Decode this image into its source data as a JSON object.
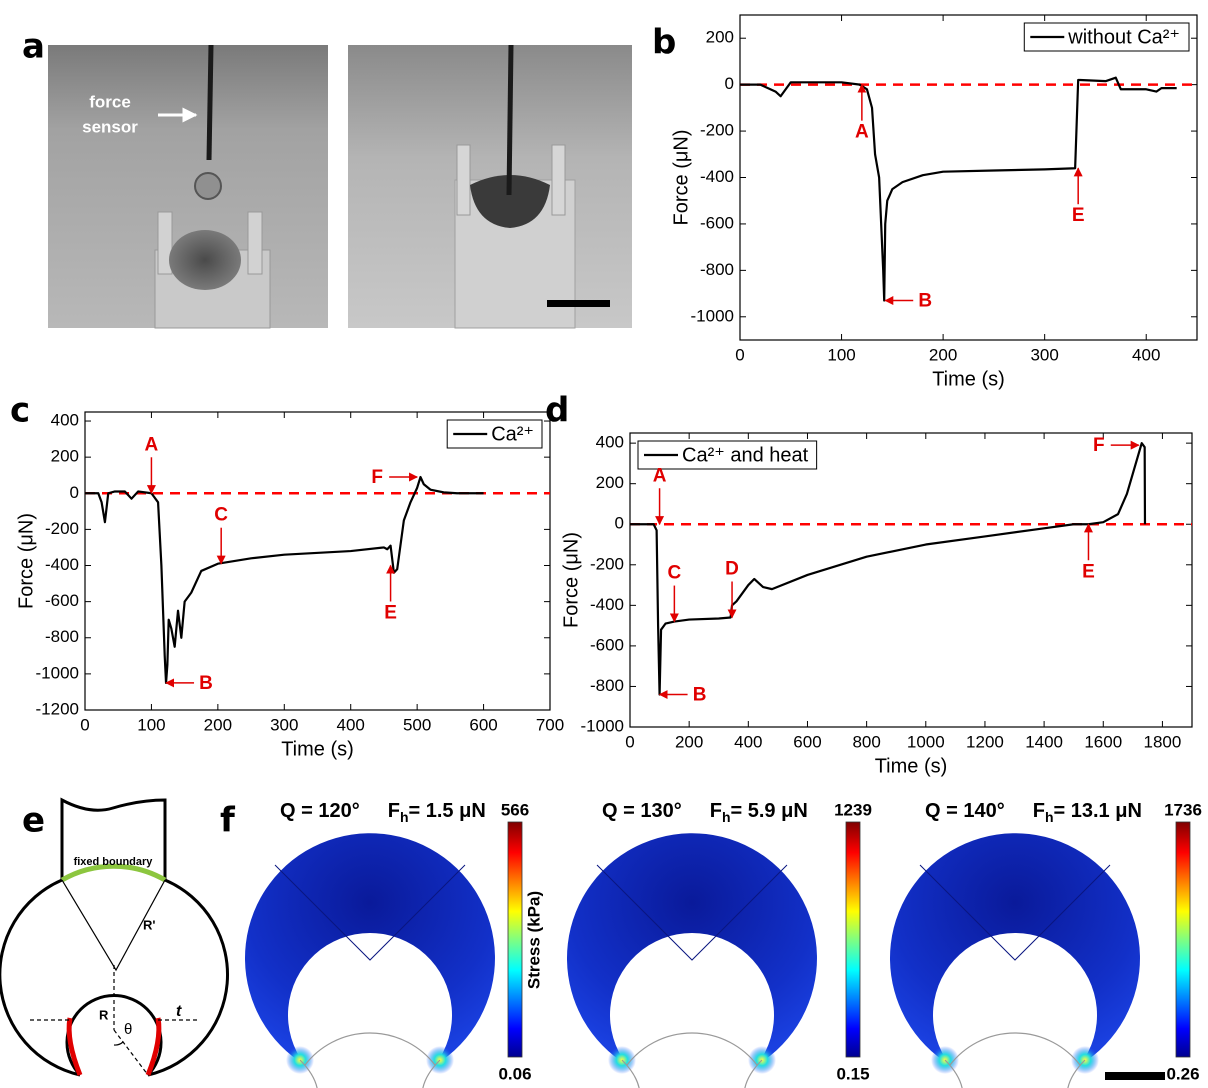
{
  "panel_labels": [
    "a",
    "b",
    "c",
    "d",
    "e",
    "f"
  ],
  "panel_a": {
    "annotation": [
      "force",
      "sensor"
    ]
  },
  "chart_data": [
    {
      "type": "line",
      "xlabel": "Time (s)",
      "ylabel": "Force (μN)",
      "xlim": [
        0,
        450
      ],
      "ylim": [
        -1100,
        300
      ],
      "xticks": [
        0,
        100,
        200,
        300,
        400
      ],
      "yticks": [
        -1000,
        -800,
        -600,
        -400,
        -200,
        0,
        200
      ],
      "legend": "upper right",
      "reference_line": {
        "y": 0,
        "color": "#ff0000"
      },
      "series": [
        {
          "name": "without Ca²⁺",
          "color": "#000000",
          "x": [
            0,
            20,
            35,
            40,
            45,
            50,
            100,
            118,
            125,
            130,
            133,
            137,
            140,
            141,
            142,
            143,
            145,
            150,
            160,
            180,
            200,
            250,
            300,
            330,
            333,
            335,
            360,
            370,
            375,
            400,
            410,
            415,
            430
          ],
          "values": [
            0,
            0,
            -30,
            -50,
            -20,
            10,
            10,
            0,
            -20,
            -100,
            -300,
            -400,
            -700,
            -800,
            -930,
            -600,
            -500,
            -450,
            -420,
            -390,
            -375,
            -370,
            -365,
            -360,
            20,
            20,
            15,
            30,
            -20,
            -20,
            -30,
            -15,
            -15
          ]
        }
      ],
      "annotations": [
        {
          "text": "A",
          "x": 120,
          "y": 0,
          "direction": "up"
        },
        {
          "text": "B",
          "x": 143,
          "y": -930,
          "direction": "left"
        },
        {
          "text": "E",
          "x": 333,
          "y": -360,
          "direction": "up"
        }
      ]
    },
    {
      "type": "line",
      "xlabel": "Time (s)",
      "ylabel": "Force (μN)",
      "xlim": [
        0,
        700
      ],
      "ylim": [
        -1200,
        450
      ],
      "xticks": [
        0,
        100,
        200,
        300,
        400,
        500,
        600,
        700
      ],
      "yticks": [
        -1200,
        -1000,
        -800,
        -600,
        -400,
        -200,
        0,
        200,
        400
      ],
      "legend": "upper right",
      "reference_line": {
        "y": 0,
        "color": "#ff0000"
      },
      "series": [
        {
          "name": "Ca²⁺",
          "color": "#000000",
          "x": [
            0,
            20,
            25,
            30,
            35,
            45,
            60,
            70,
            80,
            100,
            110,
            115,
            120,
            122,
            124,
            126,
            130,
            135,
            140,
            145,
            150,
            160,
            175,
            200,
            250,
            300,
            400,
            450,
            455,
            460,
            465,
            470,
            480,
            490,
            500,
            505,
            510,
            520,
            540,
            560,
            600
          ],
          "values": [
            0,
            0,
            -50,
            -160,
            0,
            10,
            10,
            -30,
            10,
            0,
            -50,
            -400,
            -900,
            -1050,
            -950,
            -700,
            -750,
            -850,
            -650,
            -800,
            -600,
            -550,
            -430,
            -390,
            -360,
            -340,
            -320,
            -300,
            -310,
            -290,
            -440,
            -420,
            -150,
            -50,
            30,
            90,
            50,
            20,
            5,
            0,
            0
          ]
        }
      ],
      "annotations": [
        {
          "text": "A",
          "x": 100,
          "y": 0,
          "direction": "down"
        },
        {
          "text": "B",
          "x": 122,
          "y": -1050,
          "direction": "left"
        },
        {
          "text": "C",
          "x": 205,
          "y": -390,
          "direction": "down"
        },
        {
          "text": "E",
          "x": 460,
          "y": -400,
          "direction": "up"
        },
        {
          "text": "F",
          "x": 500,
          "y": 90,
          "direction": "right"
        }
      ]
    },
    {
      "type": "line",
      "xlabel": "Time (s)",
      "ylabel": "Force (μN)",
      "xlim": [
        0,
        1900
      ],
      "ylim": [
        -1000,
        450
      ],
      "xticks": [
        0,
        200,
        400,
        600,
        800,
        1000,
        1200,
        1400,
        1600,
        1800
      ],
      "yticks": [
        -1000,
        -800,
        -600,
        -400,
        -200,
        0,
        200,
        400
      ],
      "legend": "upper left",
      "reference_line": {
        "y": 0,
        "color": "#ff0000"
      },
      "series": [
        {
          "name": "Ca²⁺ and heat",
          "color": "#000000",
          "x": [
            0,
            80,
            90,
            95,
            100,
            105,
            120,
            150,
            200,
            300,
            340,
            345,
            360,
            400,
            420,
            450,
            480,
            600,
            800,
            1000,
            1200,
            1400,
            1500,
            1550,
            1600,
            1650,
            1680,
            1700,
            1720,
            1730,
            1740,
            1741
          ],
          "values": [
            0,
            0,
            -30,
            -500,
            -840,
            -520,
            -490,
            -480,
            -470,
            -465,
            -460,
            -400,
            -380,
            -300,
            -270,
            -310,
            -320,
            -250,
            -160,
            -100,
            -60,
            -20,
            0,
            0,
            10,
            50,
            150,
            250,
            350,
            400,
            380,
            0
          ]
        }
      ],
      "annotations": [
        {
          "text": "A",
          "x": 100,
          "y": 0,
          "direction": "down"
        },
        {
          "text": "B",
          "x": 100,
          "y": -840,
          "direction": "left"
        },
        {
          "text": "C",
          "x": 150,
          "y": -480,
          "direction": "down"
        },
        {
          "text": "D",
          "x": 345,
          "y": -460,
          "direction": "down"
        },
        {
          "text": "E",
          "x": 1550,
          "y": 0,
          "direction": "up"
        },
        {
          "text": "F",
          "x": 1720,
          "y": 390,
          "direction": "right"
        }
      ]
    }
  ],
  "panel_e": {
    "labels": [
      "fixed boundary",
      "R'",
      "R",
      "θ",
      "t"
    ]
  },
  "panel_f": {
    "colorbar_title": "Stress (kPa)",
    "maps": [
      {
        "angle": "Q = 120°",
        "force": "F",
        "force_sub": "h",
        "force_text": "= 1.5 μN",
        "max": 566,
        "min": 0.06
      },
      {
        "angle": "Q = 130°",
        "force": "F",
        "force_sub": "h",
        "force_text": "= 5.9 μN",
        "max": 1239,
        "min": 0.15
      },
      {
        "angle": "Q = 140°",
        "force": "F",
        "force_sub": "h",
        "force_text": "= 13.1 μN",
        "max": 1736,
        "min": 0.26
      }
    ]
  }
}
